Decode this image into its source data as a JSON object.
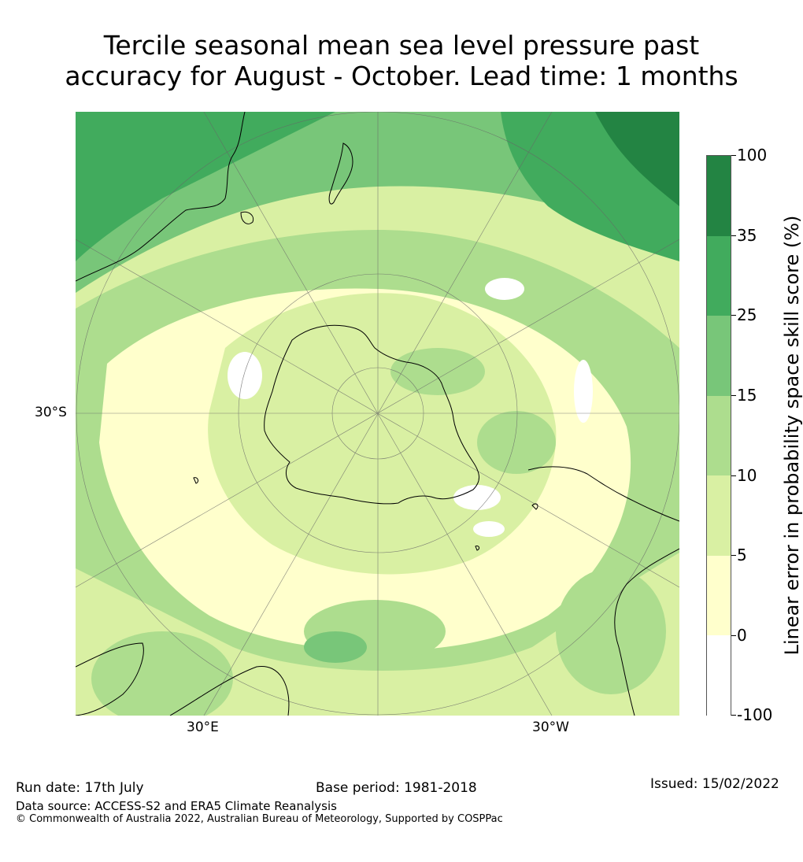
{
  "title_line1": "Tercile seasonal mean sea level pressure past",
  "title_line2": "accuracy for August - October. Lead time: 1 months",
  "map": {
    "projection": "south-polar-stereographic",
    "lat_label": "30°S",
    "lon_labels": [
      "30°E",
      "30°W"
    ]
  },
  "colorbar": {
    "label": "Linear error in probability space skill score (%)",
    "ticks": [
      "100",
      "35",
      "25",
      "15",
      "10",
      "5",
      "0",
      "-100"
    ],
    "bins": [
      {
        "range": "35-100",
        "color": "#238443"
      },
      {
        "range": "25-35",
        "color": "#41ab5d"
      },
      {
        "range": "15-25",
        "color": "#78c679"
      },
      {
        "range": "10-15",
        "color": "#addd8e"
      },
      {
        "range": "5-10",
        "color": "#d9f0a3"
      },
      {
        "range": "0-5",
        "color": "#ffffcc"
      },
      {
        "range": "-100-0",
        "color": "#ffffff"
      }
    ]
  },
  "footer": {
    "run_date": "Run date: 17th July",
    "base_period": "Base period: 1981-2018",
    "issued": "Issued: 15/02/2022",
    "data_source": "Data source: ACCESS-S2 and ERA5 Climate Reanalysis",
    "copyright": "© Commonwealth of Australia 2022, Australian Bureau of Meteorology, Supported by COSPPac"
  }
}
